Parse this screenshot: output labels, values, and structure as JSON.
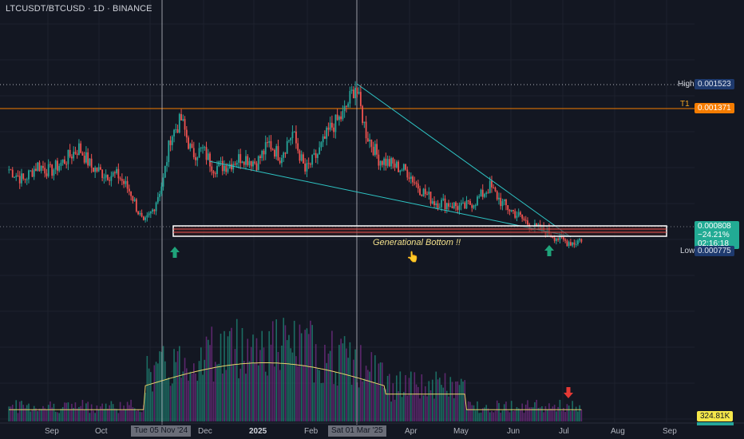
{
  "header": {
    "symbol": "LTCUSDT/BTCUSD · 1D · BINANCE"
  },
  "price_labels": {
    "high_label": "High",
    "high_value": "0.001523",
    "t1_label": "T1",
    "t1_value": "0.001371",
    "last_value": "0.000808",
    "last_change": "−24.21%",
    "last_countdown": "02:16:18",
    "low_label": "Low",
    "low_value": "0.000775",
    "volume_value": "324.81K"
  },
  "annotation": {
    "text": "Generational Bottom !!",
    "emoji": "👆"
  },
  "x_axis": {
    "labels": [
      "Sep",
      "Oct",
      "Dec",
      "2025",
      "Feb",
      "Apr",
      "May",
      "Jun",
      "Jul",
      "Aug",
      "Sep"
    ],
    "highlight_1": "Tue 05 Nov '24",
    "highlight_2": "Sat 01 Mar '25"
  },
  "colors": {
    "bg": "#131722",
    "up": "#26a69a",
    "down": "#ef5350",
    "trend": "#2ec4c4",
    "t1": "#f57c00",
    "high": "#1e3a6e",
    "volume_ma": "#e6d36b",
    "arrow_up": "#1fa37a",
    "arrow_down": "#e53935"
  },
  "chart_data": {
    "type": "candlestick",
    "y_axis": {
      "high": 0.001523,
      "t1": 0.001371,
      "last": 0.000808,
      "low": 0.000775,
      "range": [
        0.0006,
        0.0018
      ]
    },
    "x_period": [
      "2024-08",
      "2025-09"
    ],
    "price_path": [
      [
        "2024-08-20",
        0.00113
      ],
      [
        "2024-08-28",
        0.00108
      ],
      [
        "2024-09-05",
        0.00115
      ],
      [
        "2024-09-12",
        0.00112
      ],
      [
        "2024-09-20",
        0.00117
      ],
      [
        "2024-09-28",
        0.00123
      ],
      [
        "2024-10-05",
        0.00114
      ],
      [
        "2024-10-12",
        0.00111
      ],
      [
        "2024-10-20",
        0.0011
      ],
      [
        "2024-10-27",
        0.00102
      ],
      [
        "2024-11-03",
        0.00087
      ],
      [
        "2024-11-08",
        0.00094
      ],
      [
        "2024-11-14",
        0.00108
      ],
      [
        "2024-11-18",
        0.00128
      ],
      [
        "2024-11-24",
        0.00136
      ],
      [
        "2024-11-30",
        0.0012
      ],
      [
        "2024-12-06",
        0.00122
      ],
      [
        "2024-12-12",
        0.00114
      ],
      [
        "2024-12-20",
        0.00115
      ],
      [
        "2024-12-28",
        0.00119
      ],
      [
        "2025-01-05",
        0.00116
      ],
      [
        "2025-01-12",
        0.00125
      ],
      [
        "2025-01-18",
        0.00119
      ],
      [
        "2025-01-25",
        0.0013
      ],
      [
        "2025-02-01",
        0.00112
      ],
      [
        "2025-02-08",
        0.0012
      ],
      [
        "2025-02-15",
        0.00132
      ],
      [
        "2025-02-22",
        0.00138
      ],
      [
        "2025-03-01",
        0.00152
      ],
      [
        "2025-03-07",
        0.0013
      ],
      [
        "2025-03-14",
        0.00118
      ],
      [
        "2025-03-22",
        0.00115
      ],
      [
        "2025-03-30",
        0.00112
      ],
      [
        "2025-04-06",
        0.00104
      ],
      [
        "2025-04-14",
        0.00098
      ],
      [
        "2025-04-22",
        0.00097
      ],
      [
        "2025-04-30",
        0.00095
      ],
      [
        "2025-05-08",
        0.00099
      ],
      [
        "2025-05-15",
        0.00105
      ],
      [
        "2025-05-22",
        0.00097
      ],
      [
        "2025-05-30",
        0.00092
      ],
      [
        "2025-06-08",
        0.00086
      ],
      [
        "2025-06-16",
        0.00084
      ],
      [
        "2025-06-24",
        0.0008
      ],
      [
        "2025-07-01",
        0.00079
      ],
      [
        "2025-07-05",
        0.000808
      ]
    ],
    "support_zone": [
      0.000775,
      0.000808
    ],
    "volume": {
      "last": 324810
    }
  }
}
